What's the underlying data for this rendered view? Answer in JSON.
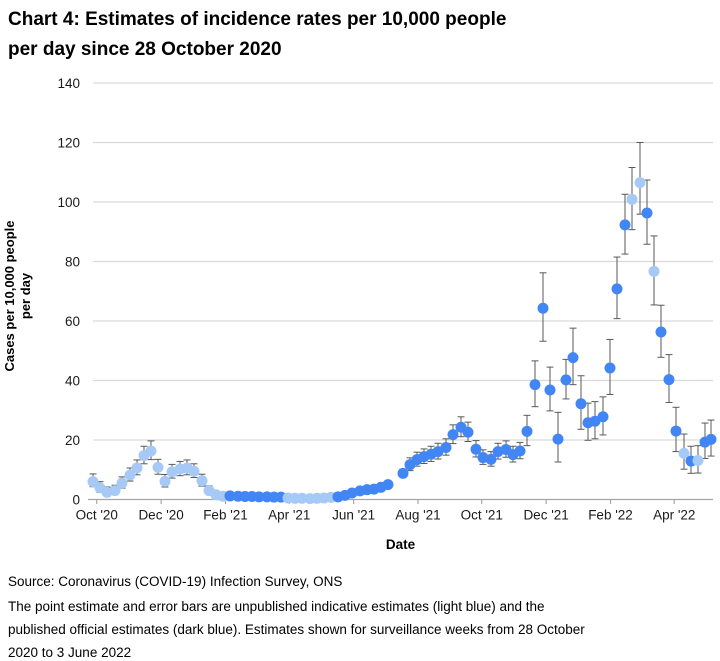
{
  "title": {
    "line1": "Chart 4: Estimates of incidence rates per 10,000 people",
    "line2": "per day since 28 October 2020"
  },
  "footer": {
    "source": "Source: Coronavirus (COVID-19) Infection Survey, ONS",
    "note": "The point estimate and error bars are unpublished indicative estimates (light blue) and the published official estimates (dark blue). Estimates shown for surveillance weeks from 28 October 2020 to 3 June 2022"
  },
  "colors": {
    "light_blue": "#A7C9F6",
    "dark_blue": "#4285F4",
    "error_bar": "#595959",
    "gridline": "#D9D9D9",
    "axis_line": "#A6A6A6",
    "tick_text": "#1A1A1A"
  },
  "chart_data": {
    "type": "scatter",
    "title": "Chart 4: Estimates of incidence rates per 10,000 people per day since 28 October 2020",
    "xlabel": "Date",
    "ylabel": "Cases per 10,000 people per day",
    "ylabel_lines": [
      "Cases per 10,000 people",
      "per day"
    ],
    "ylim": [
      0,
      140
    ],
    "y_ticks": [
      0,
      20,
      40,
      60,
      80,
      100,
      120,
      140
    ],
    "grid": "horizontal",
    "legend": "none (described in footnote: light blue = unpublished indicative estimates, dark blue = published official estimates)",
    "x_ticks": [
      {
        "f": 0.014,
        "label": "Oct '20"
      },
      {
        "f": 0.117,
        "label": "Dec '20"
      },
      {
        "f": 0.22,
        "label": "Feb '21"
      },
      {
        "f": 0.322,
        "label": "Apr '21"
      },
      {
        "f": 0.425,
        "label": "Jun '21"
      },
      {
        "f": 0.528,
        "label": "Aug '21"
      },
      {
        "f": 0.63,
        "label": "Oct '21"
      },
      {
        "f": 0.733,
        "label": "Dec '21"
      },
      {
        "f": 0.836,
        "label": "Feb '22"
      },
      {
        "f": 0.938,
        "label": "Apr '22"
      }
    ],
    "series_legend": {
      "L": "unpublished indicative estimate (light blue)",
      "D": "published official estimate (dark blue)"
    },
    "points": [
      [
        0.008,
        6.0,
        4.3,
        8.6,
        "L"
      ],
      [
        0.0192,
        3.9,
        2.4,
        6.0,
        "L"
      ],
      [
        0.0304,
        2.4,
        1.4,
        4.2,
        "L"
      ],
      [
        0.0432,
        3.0,
        1.8,
        4.8,
        "L"
      ],
      [
        0.0544,
        5.5,
        3.8,
        7.6,
        "L"
      ],
      [
        0.0672,
        8.2,
        6.2,
        10.6,
        "L"
      ],
      [
        0.0784,
        10.6,
        8.3,
        13.3,
        "L"
      ],
      [
        0.0896,
        14.8,
        12.0,
        17.9,
        "L"
      ],
      [
        0.1008,
        16.3,
        13.4,
        19.7,
        "L"
      ],
      [
        0.112,
        10.8,
        8.5,
        13.5,
        "L"
      ],
      [
        0.1232,
        6.1,
        4.2,
        8.4,
        "L"
      ],
      [
        0.1344,
        9.3,
        7.2,
        11.8,
        "L"
      ],
      [
        0.1472,
        10.2,
        8.0,
        12.8,
        "L"
      ],
      [
        0.1584,
        10.6,
        8.3,
        13.3,
        "L"
      ],
      [
        0.1696,
        9.5,
        7.4,
        12.0,
        "L"
      ],
      [
        0.1824,
        6.3,
        4.5,
        8.5,
        "L"
      ],
      [
        0.1936,
        3.0,
        1.9,
        4.6,
        "L"
      ],
      [
        0.2048,
        1.6,
        0.9,
        2.8,
        "L"
      ],
      [
        0.216,
        1.1,
        0.6,
        2.0,
        "L"
      ],
      [
        0.2272,
        1.2,
        0.9,
        1.6,
        "D"
      ],
      [
        0.24,
        1.1,
        0.8,
        1.5,
        "D"
      ],
      [
        0.2512,
        1.0,
        0.7,
        1.4,
        "D"
      ],
      [
        0.2624,
        1.0,
        0.7,
        1.4,
        "D"
      ],
      [
        0.2736,
        0.9,
        0.6,
        1.3,
        "D"
      ],
      [
        0.2864,
        0.9,
        0.6,
        1.2,
        "D"
      ],
      [
        0.2976,
        0.8,
        0.6,
        1.1,
        "D"
      ],
      [
        0.3088,
        0.8,
        0.5,
        1.1,
        "D"
      ],
      [
        0.32,
        0.5,
        0.3,
        0.8,
        "L"
      ],
      [
        0.3312,
        0.4,
        0.3,
        0.7,
        "L"
      ],
      [
        0.3424,
        0.4,
        0.2,
        0.6,
        "L"
      ],
      [
        0.3552,
        0.3,
        0.2,
        0.5,
        "L"
      ],
      [
        0.3664,
        0.4,
        0.2,
        0.6,
        "L"
      ],
      [
        0.3776,
        0.5,
        0.3,
        0.8,
        "L"
      ],
      [
        0.3888,
        0.7,
        0.4,
        1.0,
        "L"
      ],
      [
        0.4,
        0.9,
        0.6,
        1.3,
        "D"
      ],
      [
        0.4112,
        1.4,
        1.0,
        1.9,
        "D"
      ],
      [
        0.4224,
        2.2,
        1.6,
        2.9,
        "D"
      ],
      [
        0.4352,
        2.9,
        2.2,
        3.7,
        "D"
      ],
      [
        0.4464,
        3.3,
        2.6,
        4.2,
        "D"
      ],
      [
        0.4576,
        3.5,
        2.7,
        4.4,
        "D"
      ],
      [
        0.4688,
        4.1,
        3.2,
        5.1,
        "D"
      ],
      [
        0.48,
        5.0,
        4.0,
        6.2,
        "D"
      ],
      [
        0.504,
        8.8,
        7.5,
        10.2,
        "D"
      ],
      [
        0.5152,
        11.7,
        9.7,
        14.0,
        "D"
      ],
      [
        0.5264,
        13.4,
        11.2,
        15.9,
        "D"
      ],
      [
        0.5376,
        14.4,
        12.1,
        17.0,
        "D"
      ],
      [
        0.5488,
        15.2,
        12.8,
        17.9,
        "D"
      ],
      [
        0.56,
        16.1,
        13.6,
        18.9,
        "D"
      ],
      [
        0.5728,
        17.5,
        14.9,
        20.4,
        "D"
      ],
      [
        0.584,
        21.8,
        18.8,
        25.1,
        "D"
      ],
      [
        0.5968,
        24.3,
        21.1,
        27.8,
        "D"
      ],
      [
        0.608,
        22.6,
        19.5,
        26.0,
        "D"
      ],
      [
        0.6208,
        16.9,
        14.3,
        19.8,
        "D"
      ],
      [
        0.632,
        14.1,
        11.8,
        16.7,
        "D"
      ],
      [
        0.6448,
        13.5,
        11.2,
        16.1,
        "D"
      ],
      [
        0.656,
        16.1,
        13.6,
        18.9,
        "D"
      ],
      [
        0.6688,
        16.8,
        14.2,
        19.7,
        "D"
      ],
      [
        0.68,
        15.1,
        12.6,
        17.9,
        "D"
      ],
      [
        0.6912,
        16.3,
        13.7,
        19.2,
        "D"
      ],
      [
        0.7024,
        22.9,
        18.1,
        28.3,
        "D"
      ],
      [
        0.7152,
        38.6,
        31.2,
        46.6,
        "D"
      ],
      [
        0.728,
        64.3,
        53.2,
        76.2,
        "D"
      ],
      [
        0.7392,
        36.8,
        29.8,
        44.5,
        "D"
      ],
      [
        0.752,
        20.3,
        12.6,
        29.3,
        "D"
      ],
      [
        0.7648,
        40.2,
        33.8,
        47.1,
        "D"
      ],
      [
        0.776,
        47.7,
        38.6,
        57.6,
        "D"
      ],
      [
        0.7888,
        32.2,
        23.6,
        41.6,
        "D"
      ],
      [
        0.8,
        25.8,
        19.9,
        32.4,
        "D"
      ],
      [
        0.8112,
        26.3,
        20.4,
        32.9,
        "D"
      ],
      [
        0.824,
        27.8,
        21.7,
        34.5,
        "D"
      ],
      [
        0.8352,
        44.2,
        35.3,
        53.8,
        "D"
      ],
      [
        0.8464,
        70.8,
        60.8,
        81.5,
        "D"
      ],
      [
        0.8592,
        92.3,
        82.5,
        102.6,
        "D"
      ],
      [
        0.8704,
        100.9,
        90.7,
        111.6,
        "L"
      ],
      [
        0.8832,
        106.5,
        95.9,
        120.0,
        "L"
      ],
      [
        0.8944,
        96.3,
        85.8,
        107.4,
        "D"
      ],
      [
        0.9056,
        76.7,
        65.4,
        88.6,
        "L"
      ],
      [
        0.9168,
        56.3,
        47.8,
        65.3,
        "D"
      ],
      [
        0.9296,
        40.3,
        32.6,
        48.7,
        "D"
      ],
      [
        0.9408,
        23.0,
        16.1,
        31.0,
        "D"
      ],
      [
        0.9536,
        15.5,
        10.2,
        22.0,
        "L"
      ],
      [
        0.9648,
        12.9,
        8.8,
        17.9,
        "D"
      ],
      [
        0.976,
        13.1,
        8.9,
        18.1,
        "L"
      ],
      [
        0.9872,
        19.3,
        13.8,
        25.7,
        "D"
      ],
      [
        0.9968,
        20.2,
        14.6,
        26.7,
        "D"
      ]
    ]
  }
}
